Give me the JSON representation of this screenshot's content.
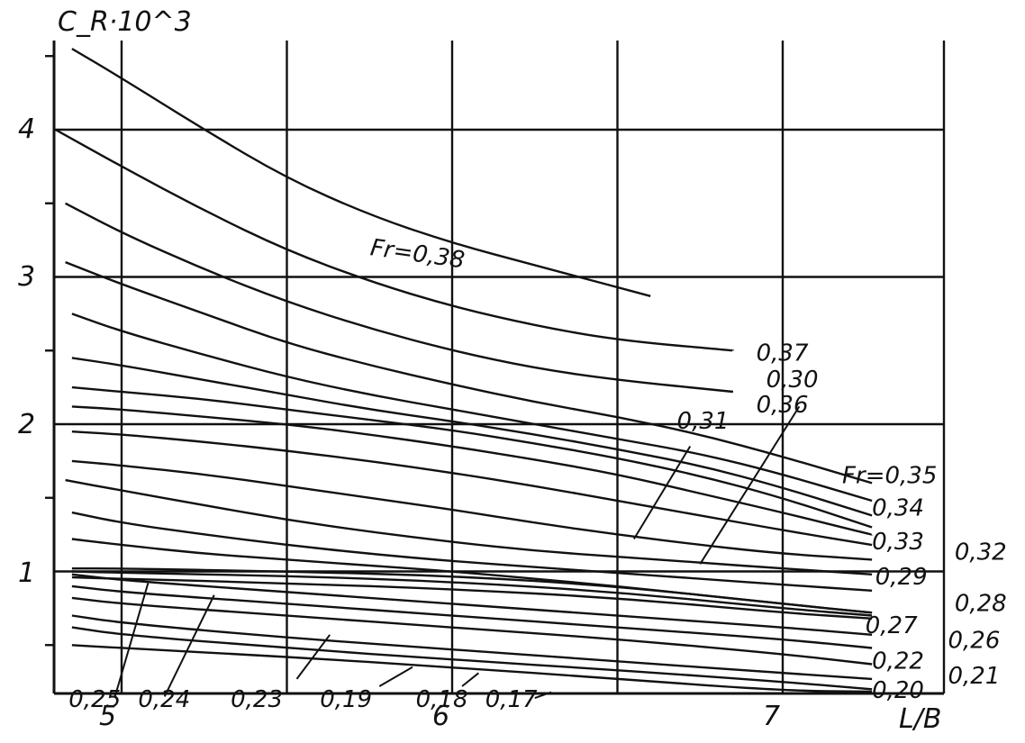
{
  "chart_data": {
    "type": "line",
    "ylabel": "C_R·10^3",
    "xlabel": "L/B",
    "xlim": [
      4.8,
      7.27
    ],
    "ylim": [
      0,
      4.6
    ],
    "grid": true,
    "x_ticks": [
      "5",
      "6",
      "7"
    ],
    "y_ticks": [
      "1",
      "2",
      "3",
      "4"
    ],
    "series": [
      {
        "name": "Fr=0,38",
        "x": [
          4.85,
          5.0,
          5.25,
          5.5,
          5.75,
          6.0,
          6.25,
          6.6
        ],
        "y": [
          4.55,
          4.35,
          4.0,
          3.67,
          3.42,
          3.23,
          3.08,
          2.87
        ]
      },
      {
        "name": "0,37",
        "x": [
          4.8,
          5.0,
          5.25,
          5.5,
          5.75,
          6.0,
          6.25,
          6.5,
          6.85
        ],
        "y": [
          4.0,
          3.75,
          3.45,
          3.18,
          2.97,
          2.8,
          2.67,
          2.57,
          2.5
        ]
      },
      {
        "name": "0,36",
        "x": [
          4.83,
          5.0,
          5.25,
          5.5,
          5.75,
          6.0,
          6.25,
          6.5,
          6.85
        ],
        "y": [
          3.5,
          3.3,
          3.05,
          2.83,
          2.65,
          2.5,
          2.38,
          2.3,
          2.22
        ]
      },
      {
        "name": "Fr=0,35",
        "x": [
          4.83,
          5.0,
          5.25,
          5.5,
          5.75,
          6.0,
          6.25,
          6.5,
          6.75,
          7.0,
          7.27
        ],
        "y": [
          3.1,
          2.95,
          2.75,
          2.55,
          2.4,
          2.27,
          2.15,
          2.05,
          1.93,
          1.78,
          1.6
        ]
      },
      {
        "name": "0,34",
        "x": [
          4.85,
          5.0,
          5.25,
          5.5,
          5.75,
          6.0,
          6.25,
          6.5,
          6.75,
          7.0,
          7.27
        ],
        "y": [
          2.75,
          2.63,
          2.47,
          2.32,
          2.2,
          2.1,
          2.0,
          1.9,
          1.8,
          1.66,
          1.48
        ]
      },
      {
        "name": "0,33",
        "x": [
          4.85,
          5.0,
          5.25,
          5.5,
          5.75,
          6.0,
          6.25,
          6.5,
          6.75,
          7.0,
          7.27
        ],
        "y": [
          2.45,
          2.4,
          2.3,
          2.2,
          2.1,
          2.02,
          1.93,
          1.83,
          1.72,
          1.57,
          1.38
        ]
      },
      {
        "name": "0,32",
        "x": [
          4.85,
          5.0,
          5.25,
          5.5,
          5.75,
          6.0,
          6.25,
          6.5,
          6.75,
          7.0,
          7.27
        ],
        "y": [
          2.25,
          2.22,
          2.17,
          2.1,
          2.03,
          1.96,
          1.87,
          1.77,
          1.65,
          1.5,
          1.3
        ]
      },
      {
        "name": "0,31",
        "x": [
          4.85,
          5.0,
          5.25,
          5.5,
          5.75,
          6.0,
          6.25,
          6.5,
          6.75,
          7.0,
          7.27
        ],
        "y": [
          2.12,
          2.1,
          2.05,
          2.0,
          1.93,
          1.85,
          1.76,
          1.66,
          1.53,
          1.4,
          1.25
        ]
      },
      {
        "name": "0,30",
        "x": [
          4.85,
          5.0,
          5.25,
          5.5,
          5.75,
          6.0,
          6.25,
          6.5,
          6.75,
          7.0,
          7.27
        ],
        "y": [
          1.95,
          1.93,
          1.88,
          1.82,
          1.75,
          1.67,
          1.58,
          1.48,
          1.38,
          1.28,
          1.18
        ]
      },
      {
        "name": "0,29",
        "x": [
          4.85,
          5.0,
          5.25,
          5.5,
          5.75,
          6.0,
          6.25,
          6.5,
          6.75,
          7.0,
          7.27
        ],
        "y": [
          1.75,
          1.72,
          1.66,
          1.58,
          1.5,
          1.42,
          1.33,
          1.25,
          1.18,
          1.12,
          1.08
        ]
      },
      {
        "name": "0,28",
        "x": [
          4.83,
          5.0,
          5.25,
          5.5,
          5.75,
          6.0,
          6.25,
          6.5,
          6.75,
          7.0,
          7.27
        ],
        "y": [
          1.62,
          1.55,
          1.45,
          1.35,
          1.27,
          1.2,
          1.14,
          1.1,
          1.06,
          1.02,
          0.98
        ]
      },
      {
        "name": "0,27",
        "x": [
          4.85,
          5.0,
          5.25,
          5.5,
          5.75,
          6.0,
          6.25,
          6.5,
          6.75,
          7.0,
          7.27
        ],
        "y": [
          1.4,
          1.33,
          1.25,
          1.18,
          1.12,
          1.07,
          1.03,
          0.99,
          0.95,
          0.91,
          0.87
        ]
      },
      {
        "name": "0,26",
        "x": [
          4.85,
          5.0,
          5.25,
          5.5,
          5.75,
          6.0,
          6.25,
          6.5,
          6.75,
          7.0,
          7.27
        ],
        "y": [
          1.22,
          1.18,
          1.12,
          1.08,
          1.04,
          1.0,
          0.95,
          0.9,
          0.84,
          0.78,
          0.72
        ]
      },
      {
        "name": "0,22",
        "x": [
          4.85,
          5.0,
          5.5,
          6.0,
          6.5,
          7.0,
          7.27
        ],
        "y": [
          0.98,
          0.94,
          0.86,
          0.78,
          0.7,
          0.62,
          0.57
        ]
      },
      {
        "name": "0,21",
        "x": [
          4.85,
          5.0,
          5.5,
          6.0,
          6.5,
          7.0,
          7.27
        ],
        "y": [
          0.9,
          0.86,
          0.78,
          0.7,
          0.62,
          0.54,
          0.48
        ]
      },
      {
        "name": "0,20",
        "x": [
          4.85,
          5.0,
          5.5,
          6.0,
          6.5,
          7.0,
          7.27
        ],
        "y": [
          0.82,
          0.78,
          0.7,
          0.62,
          0.54,
          0.44,
          0.37
        ]
      },
      {
        "name": "0,25",
        "x": [
          4.85,
          5.0,
          5.5,
          6.0,
          6.5,
          7.0,
          7.27
        ],
        "y": [
          1.02,
          1.02,
          1.0,
          0.97,
          0.9,
          0.78,
          0.72
        ]
      },
      {
        "name": "0,24",
        "x": [
          4.85,
          5.0,
          5.5,
          6.0,
          6.5,
          7.0,
          7.27
        ],
        "y": [
          1.0,
          0.99,
          0.97,
          0.93,
          0.86,
          0.75,
          0.7
        ]
      },
      {
        "name": "0,23",
        "x": [
          4.85,
          5.0,
          5.5,
          6.0,
          6.5,
          7.0,
          7.27
        ],
        "y": [
          0.96,
          0.95,
          0.92,
          0.88,
          0.82,
          0.72,
          0.68
        ]
      },
      {
        "name": "0,19",
        "x": [
          4.85,
          5.0,
          5.5,
          6.0,
          6.5,
          7.0,
          7.27
        ],
        "y": [
          0.7,
          0.65,
          0.55,
          0.47,
          0.39,
          0.31,
          0.27
        ]
      },
      {
        "name": "0,18",
        "x": [
          4.85,
          5.0,
          5.5,
          6.0,
          6.5,
          7.0,
          7.27
        ],
        "y": [
          0.62,
          0.57,
          0.48,
          0.4,
          0.33,
          0.25,
          0.2
        ]
      },
      {
        "name": "0,17",
        "x": [
          4.85,
          5.0,
          5.5,
          6.0,
          6.5,
          7.0,
          7.27
        ],
        "y": [
          0.5,
          0.48,
          0.42,
          0.35,
          0.27,
          0.19,
          0.14
        ]
      }
    ],
    "annotations": [
      {
        "text": "Fr=0,38",
        "x": 5.75,
        "y": 3.15,
        "rotate": 8
      },
      {
        "text": "0,37",
        "x": 6.92,
        "y": 2.43
      },
      {
        "text": "0,36",
        "x": 6.92,
        "y": 2.08
      },
      {
        "text": "0,31",
        "x": 6.68,
        "y": 1.97
      },
      {
        "text": "0,30",
        "x": 6.95,
        "y": 2.25
      },
      {
        "text": "Fr=0,35",
        "x": 7.18,
        "y": 1.6
      },
      {
        "text": "0,34",
        "x": 7.27,
        "y": 1.38
      },
      {
        "text": "0,33",
        "x": 7.27,
        "y": 1.15
      },
      {
        "text": "0,32",
        "x": 7.52,
        "y": 1.08
      },
      {
        "text": "0,29",
        "x": 7.28,
        "y": 0.91
      },
      {
        "text": "0,28",
        "x": 7.52,
        "y": 0.73
      },
      {
        "text": "0,27",
        "x": 7.25,
        "y": 0.58
      },
      {
        "text": "0,26",
        "x": 7.5,
        "y": 0.48
      },
      {
        "text": "0,22",
        "x": 7.27,
        "y": 0.34
      },
      {
        "text": "0,21",
        "x": 7.5,
        "y": 0.24
      },
      {
        "text": "0,20",
        "x": 7.27,
        "y": 0.14
      },
      {
        "text": "0,25",
        "x": 4.84,
        "y": 0.08
      },
      {
        "text": "0,24",
        "x": 5.05,
        "y": 0.08
      },
      {
        "text": "0,23",
        "x": 5.33,
        "y": 0.08
      },
      {
        "text": "0,19",
        "x": 5.6,
        "y": 0.08
      },
      {
        "text": "0,18",
        "x": 5.89,
        "y": 0.08
      },
      {
        "text": "0,17",
        "x": 6.1,
        "y": 0.08
      }
    ],
    "leaders": [
      {
        "x1": 6.72,
        "y1": 1.85,
        "x2": 6.55,
        "y2": 1.22
      },
      {
        "x1": 7.05,
        "y1": 2.12,
        "x2": 6.75,
        "y2": 1.05
      },
      {
        "x1": 5.08,
        "y1": 0.92,
        "x2": 4.98,
        "y2": 0.15
      },
      {
        "x1": 5.28,
        "y1": 0.84,
        "x2": 5.13,
        "y2": 0.15
      },
      {
        "x1": 5.63,
        "y1": 0.57,
        "x2": 5.53,
        "y2": 0.27
      },
      {
        "x1": 5.88,
        "y1": 0.35,
        "x2": 5.78,
        "y2": 0.22
      },
      {
        "x1": 6.08,
        "y1": 0.31,
        "x2": 6.03,
        "y2": 0.22
      },
      {
        "x1": 6.3,
        "y1": 0.18,
        "x2": 6.25,
        "y2": 0.14
      }
    ]
  }
}
